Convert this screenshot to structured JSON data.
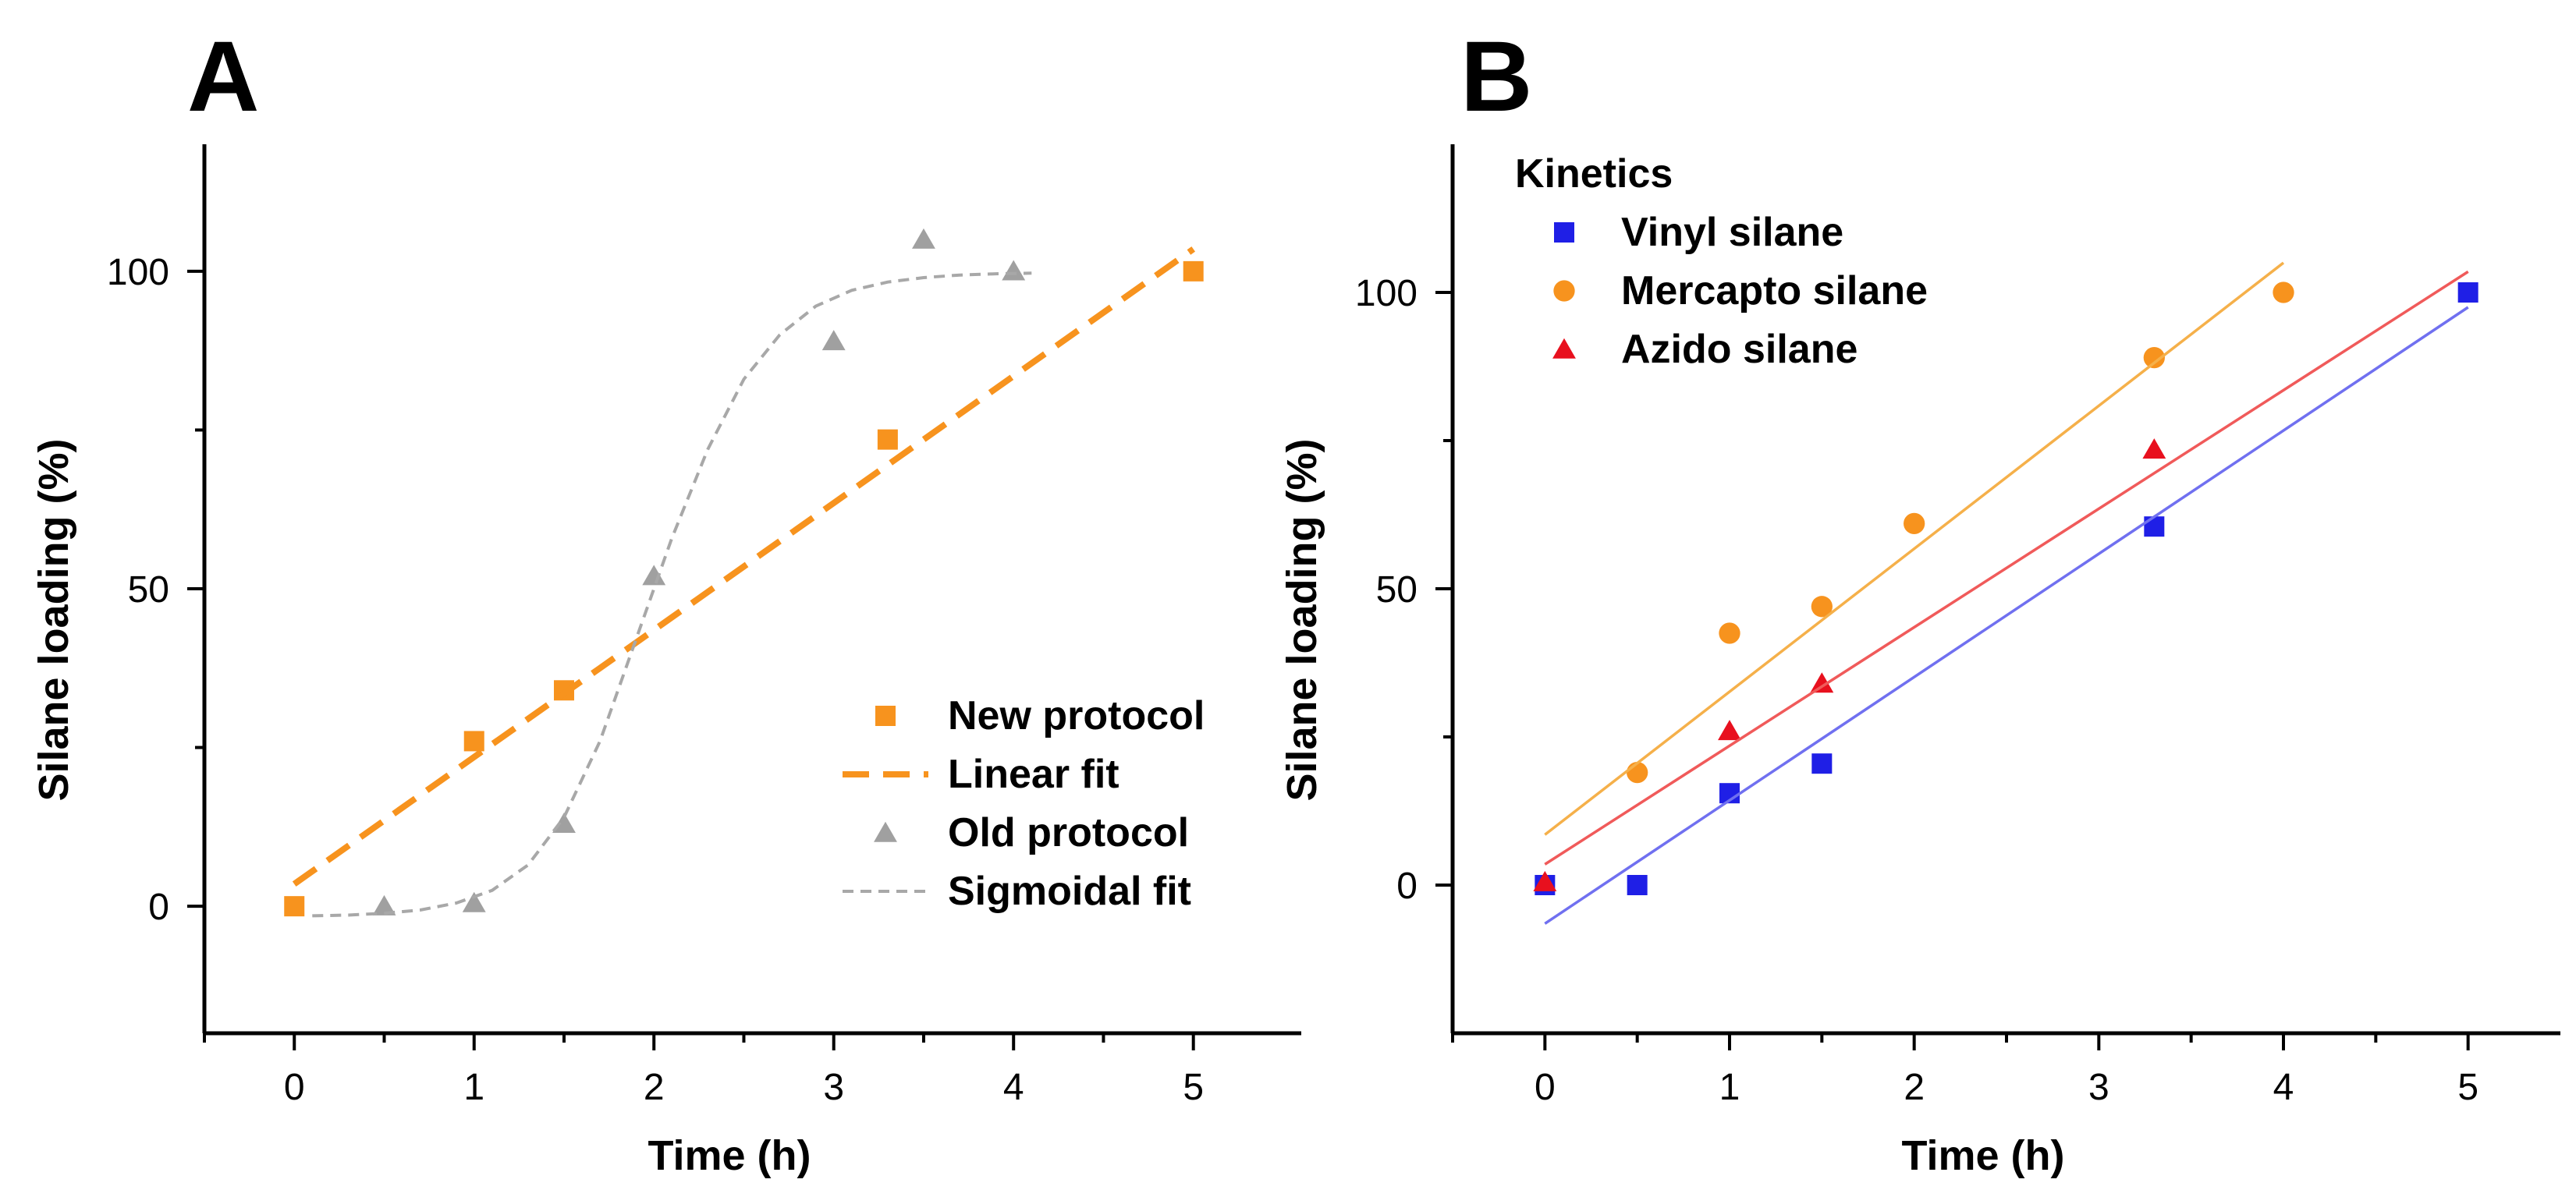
{
  "chart_data": [
    {
      "panel": "A",
      "type": "scatter",
      "xlabel": "Time (h)",
      "ylabel": "Silane loading (%)",
      "xlim": [
        -0.5,
        5.6
      ],
      "ylim": [
        -20,
        120
      ],
      "xticks": [
        0,
        1,
        2,
        3,
        4,
        5
      ],
      "yticks": [
        0,
        50,
        100
      ],
      "x_minor_ticks": [
        -0.5,
        0.5,
        1.5,
        2.5,
        3.5,
        4.5
      ],
      "y_minor_ticks": [
        25,
        75
      ],
      "legend_position": "bottom-right",
      "series": [
        {
          "name": "New protocol",
          "kind": "points",
          "marker": "square",
          "color": "#F7931E",
          "x": [
            0,
            1,
            1.5,
            3.3,
            5
          ],
          "y": [
            0,
            26,
            34,
            73.5,
            100
          ]
        },
        {
          "name": "Linear fit",
          "kind": "line",
          "style": "long-dash",
          "color": "#F7931E",
          "x": [
            0,
            5
          ],
          "y": [
            3.5,
            103.5
          ]
        },
        {
          "name": "Old protocol",
          "kind": "points",
          "marker": "triangle",
          "color": "#A0A0A0",
          "x": [
            0.5,
            1,
            1.5,
            2,
            3,
            3.5,
            4
          ],
          "y": [
            0,
            0.5,
            13,
            52,
            89,
            105,
            100
          ]
        },
        {
          "name": "Sigmoidal fit",
          "kind": "curve",
          "style": "short-dash",
          "color": "#A8A8A8",
          "x": [
            0.1,
            0.3,
            0.5,
            0.7,
            0.9,
            1.1,
            1.3,
            1.5,
            1.7,
            1.9,
            2.1,
            2.3,
            2.5,
            2.7,
            2.9,
            3.1,
            3.3,
            3.5,
            3.7,
            3.9,
            4.1
          ],
          "y": [
            -1.5,
            -1.4,
            -1.1,
            -0.6,
            0.5,
            2.5,
            6.5,
            14,
            26,
            42,
            58,
            72,
            83,
            90,
            94.5,
            97,
            98.3,
            99,
            99.4,
            99.6,
            99.7
          ]
        }
      ]
    },
    {
      "panel": "B",
      "type": "scatter",
      "xlabel": "Time (h)",
      "ylabel": "Silane loading (%)",
      "xlim": [
        -0.5,
        5.5
      ],
      "ylim": [
        -25,
        125
      ],
      "xticks": [
        0,
        1,
        2,
        3,
        4,
        5
      ],
      "yticks": [
        0,
        50,
        100
      ],
      "x_minor_ticks": [
        -0.5,
        0.5,
        1.5,
        2.5,
        3.5,
        4.5
      ],
      "y_minor_ticks": [
        25,
        75
      ],
      "legend_title": "Kinetics",
      "legend_position": "top-left",
      "series": [
        {
          "name": "Vinyl silane",
          "kind": "points",
          "marker": "square",
          "color": "#1F1FE6",
          "x": [
            0,
            0.5,
            1,
            1.5,
            3.3,
            5
          ],
          "y": [
            0,
            0,
            15.5,
            20.5,
            60.5,
            100
          ]
        },
        {
          "kind": "line",
          "color": "#7070F0",
          "x": [
            0,
            5
          ],
          "y": [
            -6.5,
            97.5
          ]
        },
        {
          "name": "Mercapto silane",
          "kind": "points",
          "marker": "circle",
          "color": "#F7931E",
          "x": [
            0.5,
            1,
            1.5,
            2,
            3.3,
            4
          ],
          "y": [
            19,
            42.5,
            47,
            61,
            89,
            100
          ]
        },
        {
          "kind": "line",
          "color": "#F5B04A",
          "x": [
            0,
            4
          ],
          "y": [
            8.5,
            105
          ]
        },
        {
          "name": "Azido silane",
          "kind": "points",
          "marker": "triangle",
          "color": "#E8101E",
          "x": [
            0,
            1,
            1.5,
            3.3
          ],
          "y": [
            0.5,
            26,
            34,
            73.5
          ]
        },
        {
          "kind": "line",
          "color": "#F05A5A",
          "x": [
            0,
            5
          ],
          "y": [
            3.5,
            103.5
          ]
        }
      ]
    }
  ]
}
